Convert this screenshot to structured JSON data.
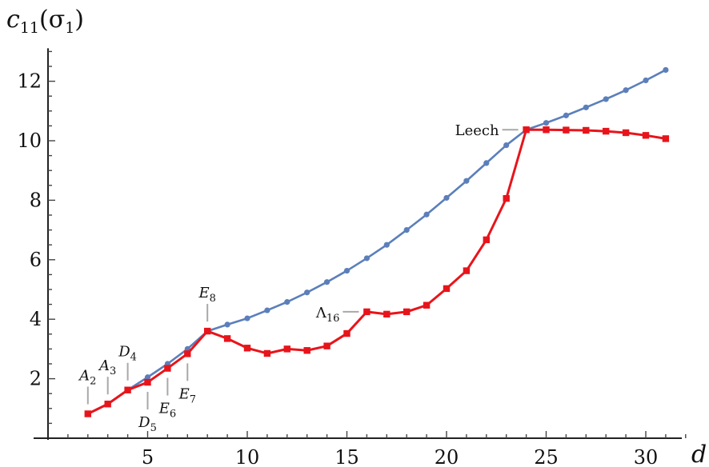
{
  "chart_data": {
    "type": "line",
    "ylabel_main": "c",
    "ylabel_sub": "11",
    "ylabel_arg": "(σ",
    "ylabel_arg_sub": "1",
    "ylabel_close": ")",
    "xlabel": "d",
    "xlim": [
      0,
      32
    ],
    "ylim": [
      0,
      13
    ],
    "x_ticks": [
      5,
      10,
      15,
      20,
      25,
      30
    ],
    "y_ticks": [
      2,
      4,
      6,
      8,
      10,
      12
    ],
    "grid": false,
    "series": [
      {
        "color": "#5b7fba",
        "marker": "circle",
        "x": [
          2,
          3,
          4,
          5,
          6,
          7,
          8,
          9,
          10,
          11,
          12,
          13,
          14,
          15,
          16,
          17,
          18,
          19,
          20,
          21,
          22,
          23,
          24,
          25,
          26,
          27,
          28,
          29,
          30,
          31
        ],
        "y": [
          0.82,
          1.15,
          1.62,
          2.05,
          2.5,
          3.0,
          3.6,
          3.82,
          4.03,
          4.3,
          4.58,
          4.9,
          5.25,
          5.63,
          6.05,
          6.5,
          7.0,
          7.52,
          8.08,
          8.65,
          9.25,
          9.85,
          10.37,
          10.6,
          10.85,
          11.12,
          11.4,
          11.7,
          12.03,
          12.38
        ]
      },
      {
        "color": "#e8141b",
        "marker": "square",
        "x": [
          2,
          3,
          4,
          5,
          6,
          7,
          8,
          9,
          10,
          11,
          12,
          13,
          14,
          15,
          16,
          17,
          18,
          19,
          20,
          21,
          22,
          23,
          24,
          25,
          26,
          27,
          28,
          29,
          30,
          31
        ],
        "y": [
          0.82,
          1.15,
          1.62,
          1.88,
          2.35,
          2.84,
          3.6,
          3.35,
          3.03,
          2.85,
          3.0,
          2.95,
          3.1,
          3.52,
          4.25,
          4.17,
          4.25,
          4.47,
          5.03,
          5.63,
          6.67,
          8.06,
          10.37,
          10.37,
          10.36,
          10.35,
          10.32,
          10.27,
          10.18,
          10.07
        ]
      }
    ],
    "annotations": [
      {
        "main": "A",
        "sub": "2",
        "italic": true,
        "x": 2,
        "y": 0.82,
        "label_side": "above"
      },
      {
        "main": "A",
        "sub": "3",
        "italic": true,
        "x": 3,
        "y": 1.15,
        "label_side": "above"
      },
      {
        "main": "D",
        "sub": "4",
        "italic": true,
        "x": 4,
        "y": 1.62,
        "label_side": "above"
      },
      {
        "main": "D",
        "sub": "5",
        "italic": true,
        "x": 5,
        "y": 1.88,
        "label_side": "below"
      },
      {
        "main": "E",
        "sub": "6",
        "italic": true,
        "x": 6,
        "y": 2.35,
        "label_side": "below"
      },
      {
        "main": "E",
        "sub": "7",
        "italic": true,
        "x": 7,
        "y": 2.84,
        "label_side": "below"
      },
      {
        "main": "E",
        "sub": "8",
        "italic": true,
        "x": 8,
        "y": 3.6,
        "label_side": "above"
      },
      {
        "main": "Λ",
        "sub": "16",
        "italic": false,
        "x": 16,
        "y": 4.25,
        "label_side": "left"
      },
      {
        "main": "Leech",
        "sub": "",
        "italic": false,
        "x": 24,
        "y": 10.37,
        "label_side": "left"
      }
    ]
  }
}
